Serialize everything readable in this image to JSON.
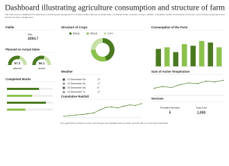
{
  "header": {
    "title": "Dashboard illustrating agriculture consumption and structure of farm",
    "subtitle": "The slide covers a dashboard for agriculture monitoring and management. It contains fields, planned vs actual sales, completed works, structure of crops, weather, cumulative rainfall, consumption of the farm, sum of active temperature and services for farm management."
  },
  "fields": {
    "title": "Fields",
    "label": "Max",
    "value": "4394.7"
  },
  "sales": {
    "title": "Planned vs Actual Sales",
    "gauges": [
      {
        "value": "57.2",
        "label": "planned"
      },
      {
        "value": "56.1",
        "label": "actual"
      }
    ]
  },
  "works": {
    "title": "Completed Works",
    "xlim": [
      0,
      100
    ],
    "values": [
      70,
      55,
      85,
      40
    ]
  },
  "crops": {
    "title": "Structure of Crops",
    "legend": [
      "Barley",
      "Wheat",
      "Corn"
    ],
    "values": [
      45,
      30,
      25
    ],
    "colors": [
      "#4a7a1e",
      "#8bc34a",
      "#c5e1a5"
    ]
  },
  "weather": {
    "title": "Weather",
    "rows": [
      {
        "date": "21 December Sa",
        "temp": "-3°"
      },
      {
        "date": "22 December Su",
        "temp": "-1°"
      },
      {
        "date": "23 December Mo",
        "temp": "0°"
      },
      {
        "date": "24 December Tu",
        "temp": "-2°"
      }
    ]
  },
  "rainfall": {
    "title": "Cumulative Rainfall",
    "ylim": [
      0,
      60
    ],
    "values": [
      5,
      8,
      10,
      12,
      15,
      18,
      30,
      40,
      42,
      38,
      45,
      50,
      48,
      55
    ]
  },
  "consumption": {
    "title": "Consumption of the Farm",
    "ylim": [
      0,
      100
    ],
    "values": [
      55,
      60,
      45,
      70,
      65,
      80,
      75,
      60
    ]
  },
  "temperature": {
    "title": "Sum of Active Temperature",
    "ylim": [
      0,
      50
    ],
    "values": [
      20,
      25,
      22,
      30,
      35,
      33,
      40,
      38,
      42
    ]
  },
  "services": {
    "title": "Services",
    "items": [
      {
        "label": "Provided Services",
        "value": "5"
      },
      {
        "label": "Total Cost",
        "value": "1,000"
      }
    ]
  },
  "footer": "This graph/chart is linked to excel, and changes automatically based on data. Just left click on it and select 'Edit Data'."
}
